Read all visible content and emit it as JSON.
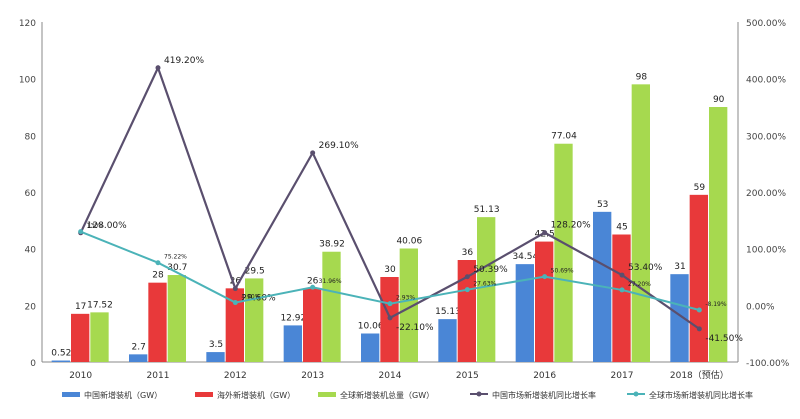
{
  "chart_data": {
    "type": "bar",
    "categories": [
      "2010",
      "2011",
      "2012",
      "2013",
      "2014",
      "2015",
      "2016",
      "2017",
      "2018（预估）"
    ],
    "y_left": {
      "ylim": [
        0,
        120
      ],
      "ticks": [
        "0",
        "20",
        "40",
        "60",
        "80",
        "100",
        "120"
      ]
    },
    "y_right": {
      "ylim": [
        -100,
        500
      ],
      "ticks": [
        "-100.00%",
        "0.00%",
        "100.00%",
        "200.00%",
        "300.00%",
        "400.00%",
        "500.00%"
      ]
    },
    "series": [
      {
        "name": "中国新增装机（GW）",
        "type": "bar",
        "axis": "left",
        "color": "#4a86d6",
        "values": [
          0.52,
          2.7,
          3.5,
          12.92,
          10.06,
          15.13,
          34.54,
          53,
          31
        ],
        "labels": [
          "0.52",
          "2.7",
          "3.5",
          "12.92",
          "10.06",
          "15.13",
          "34.54",
          "53",
          "31"
        ]
      },
      {
        "name": "海外新增装机（GW）",
        "type": "bar",
        "axis": "left",
        "color": "#e8393a",
        "values": [
          17,
          28,
          26,
          26,
          30,
          36,
          42.5,
          45,
          59
        ],
        "labels": [
          "17",
          "28",
          "26",
          "26",
          "30",
          "36",
          "42.5",
          "45",
          "59"
        ]
      },
      {
        "name": "全球新增装机总量（GW）",
        "type": "bar",
        "axis": "left",
        "color": "#a6d94f",
        "values": [
          17.52,
          30.7,
          29.5,
          38.92,
          40.06,
          51.13,
          77.04,
          98,
          90
        ],
        "labels": [
          "17.52",
          "30.7",
          "29.5",
          "38.92",
          "40.06",
          "51.13",
          "77.04",
          "98",
          "90"
        ]
      },
      {
        "name": "中国市场新增装机同比增长率",
        "type": "line",
        "axis": "right",
        "color": "#5a4f6e",
        "values": [
          128,
          419.2,
          29.6,
          269.1,
          -22.1,
          50.39,
          128.2,
          53.4,
          -41.5
        ],
        "labels": [
          "128.00%",
          "419.20%",
          "29.60%",
          "269.10%",
          "-22.10%",
          "50.39%",
          "128.20%",
          "53.40%",
          "-41.50%"
        ]
      },
      {
        "name": "全球市场新增装机同比增长率",
        "type": "line",
        "axis": "right",
        "color": "#4bb3b8",
        "values": [
          130,
          75.22,
          4.9,
          31.96,
          2.93,
          27.63,
          50.69,
          27.2,
          -8.19
        ],
        "labels": [
          "130%",
          "75.22%",
          "4.90%",
          "31.96%",
          "2.93%",
          "27.63%",
          "50.69%",
          "27.20%",
          "-8.19%"
        ]
      }
    ],
    "legend": "bottom",
    "grid": false
  }
}
